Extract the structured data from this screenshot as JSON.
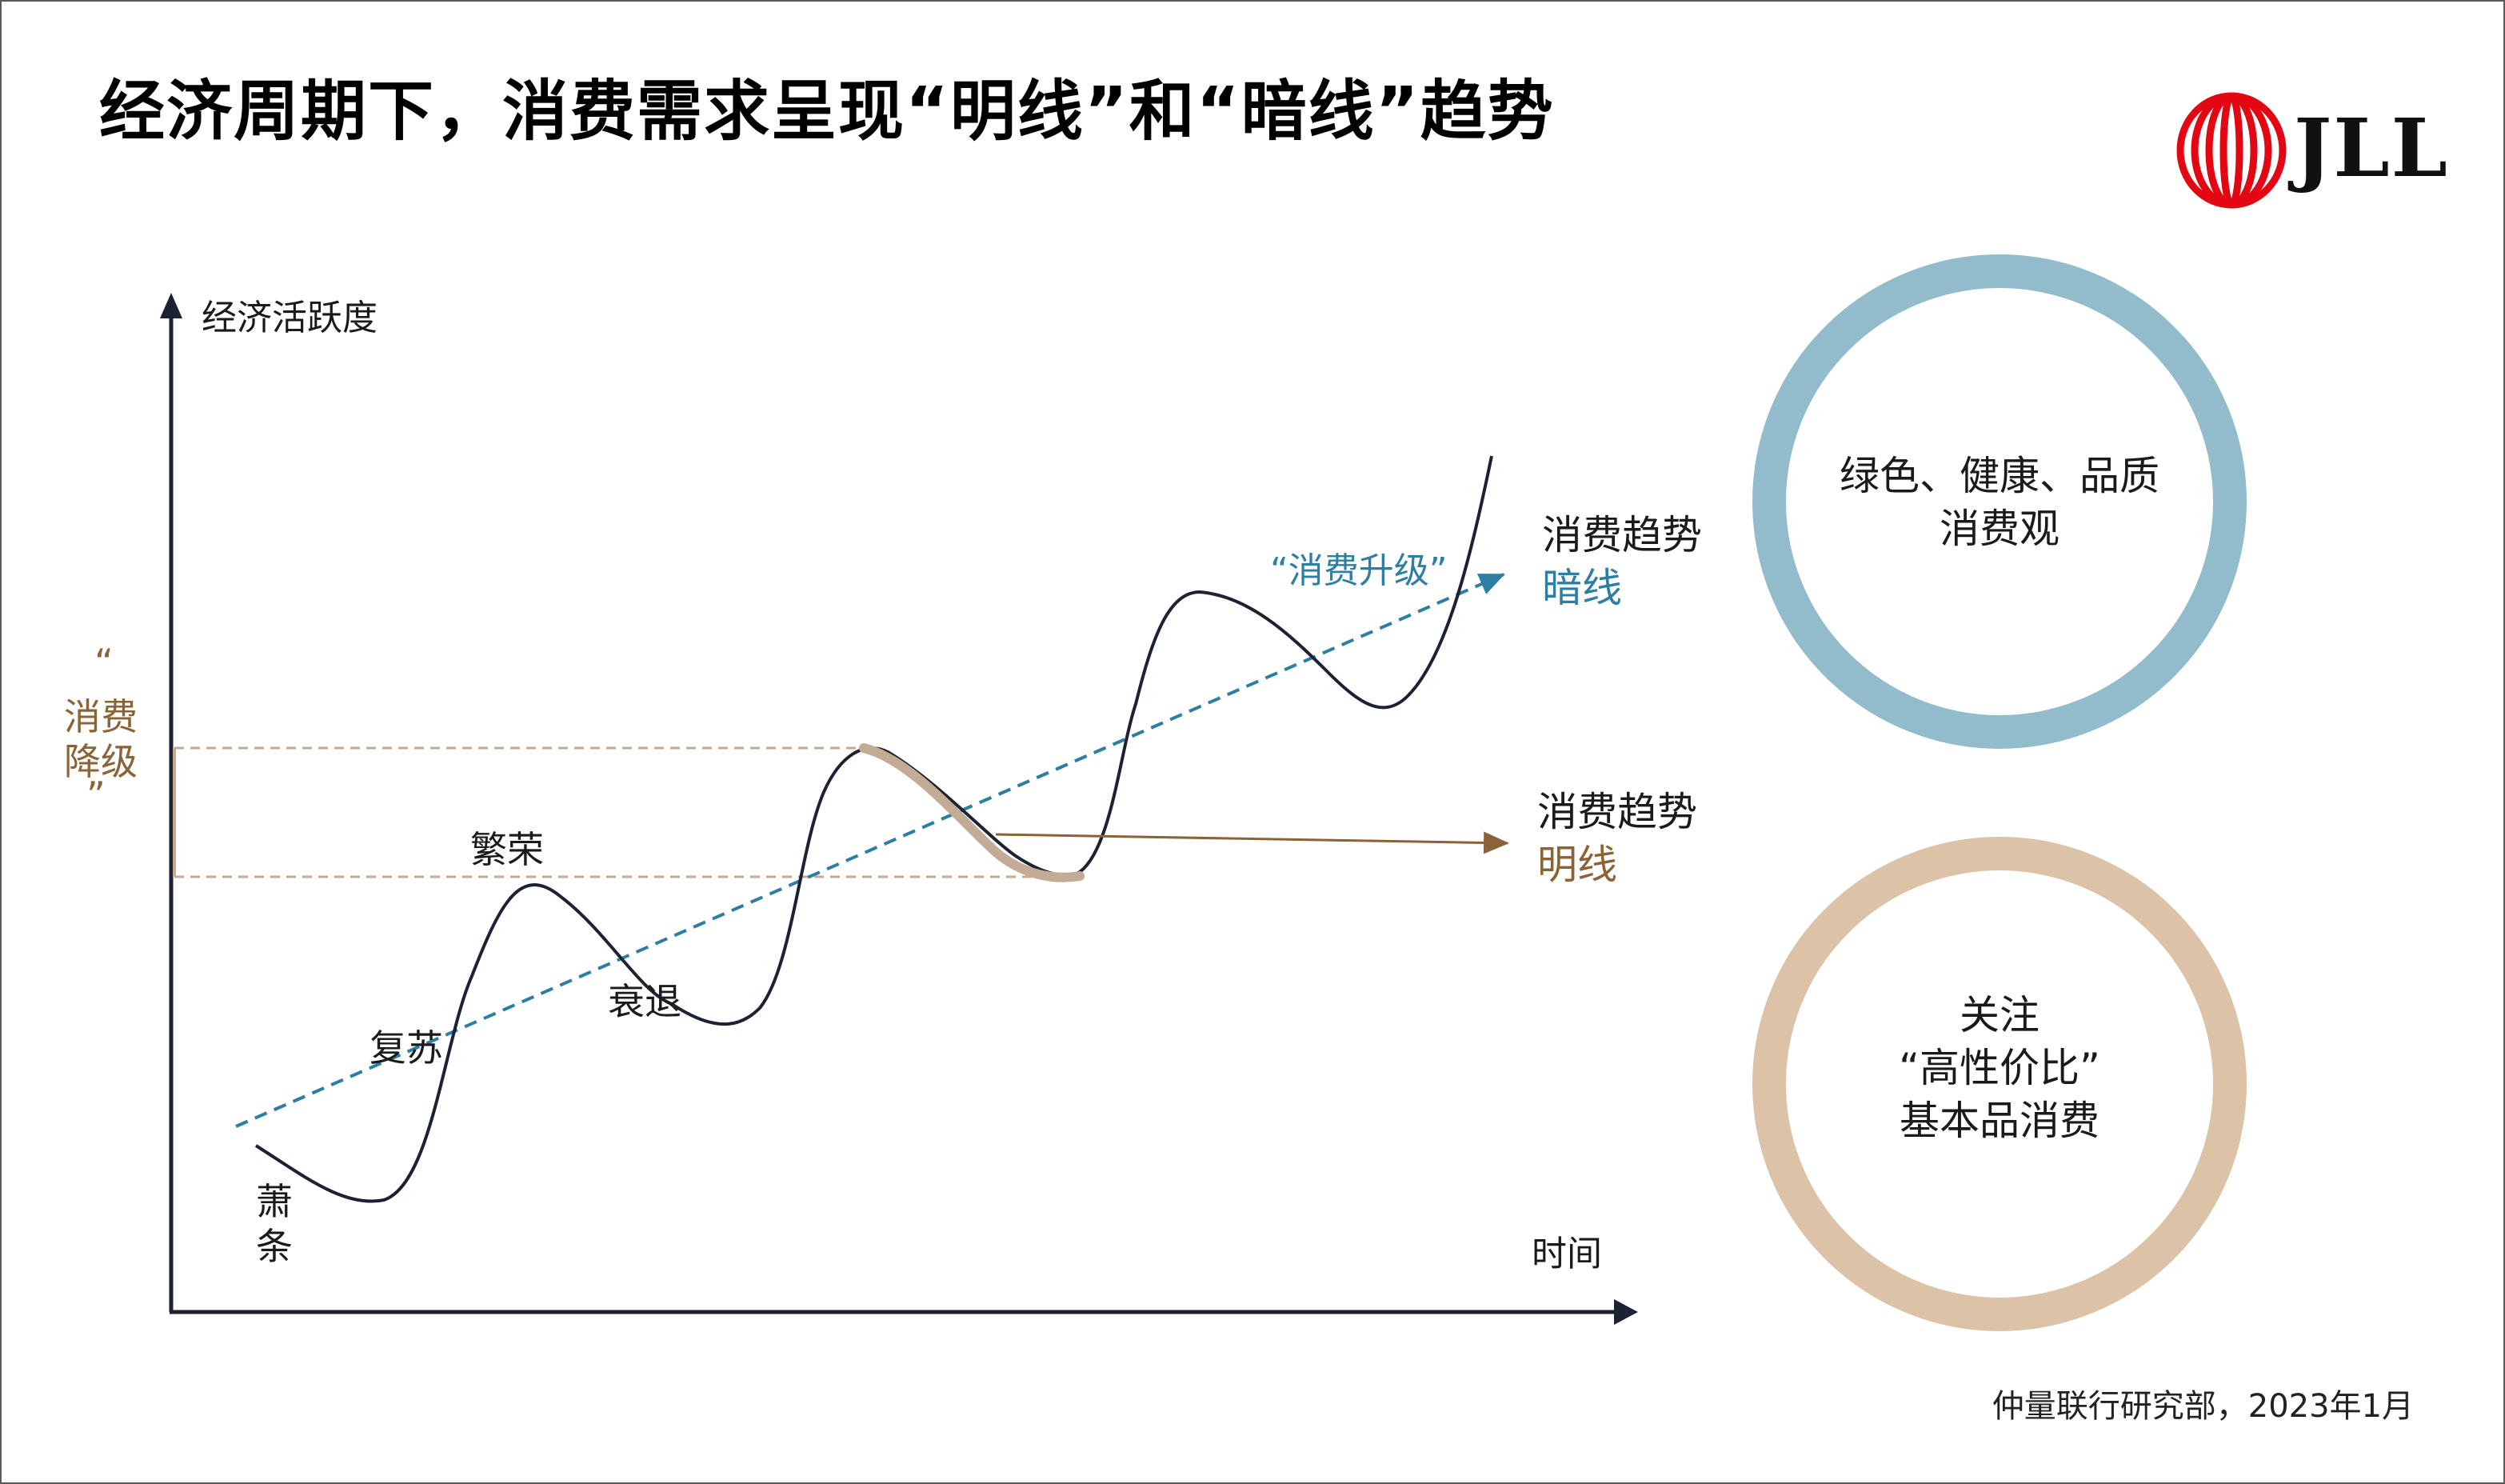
{
  "title": "经济周期下，消费需求呈现“明线”和“暗线”趋势",
  "logo": {
    "text": "JLL",
    "color": "#e30613"
  },
  "axes": {
    "y_label": "经济活跃度",
    "x_label": "时间"
  },
  "phases": {
    "xiaotiao_1": "萧",
    "xiaotiao_2": "条",
    "fusu": "复苏",
    "fanrong": "繁荣",
    "shuaitui": "衰退"
  },
  "downgrade": {
    "open_quote": "“",
    "line1": "消费",
    "line2": "降级",
    "close_quote": "”"
  },
  "upgrade_label": "“消费升级”",
  "dark_line": {
    "line1": "消费趋势",
    "line2": "暗线"
  },
  "bright_line": {
    "line1": "消费趋势",
    "line2": "明线"
  },
  "circle_top": {
    "line1": "绿色、健康、品质",
    "line2": "消费观"
  },
  "circle_bottom": {
    "line1": "关注",
    "line2": "“高性价比”",
    "line3": "基本品消费"
  },
  "footer": "仲量联行研究部，2023年1月",
  "colors": {
    "blue": "#2c7fa3",
    "brown": "#8a6437",
    "tan": "#c9a98e",
    "circle_blue": "#92bccb",
    "circle_tan": "#dcc3a7",
    "axis": "#1c2233"
  }
}
